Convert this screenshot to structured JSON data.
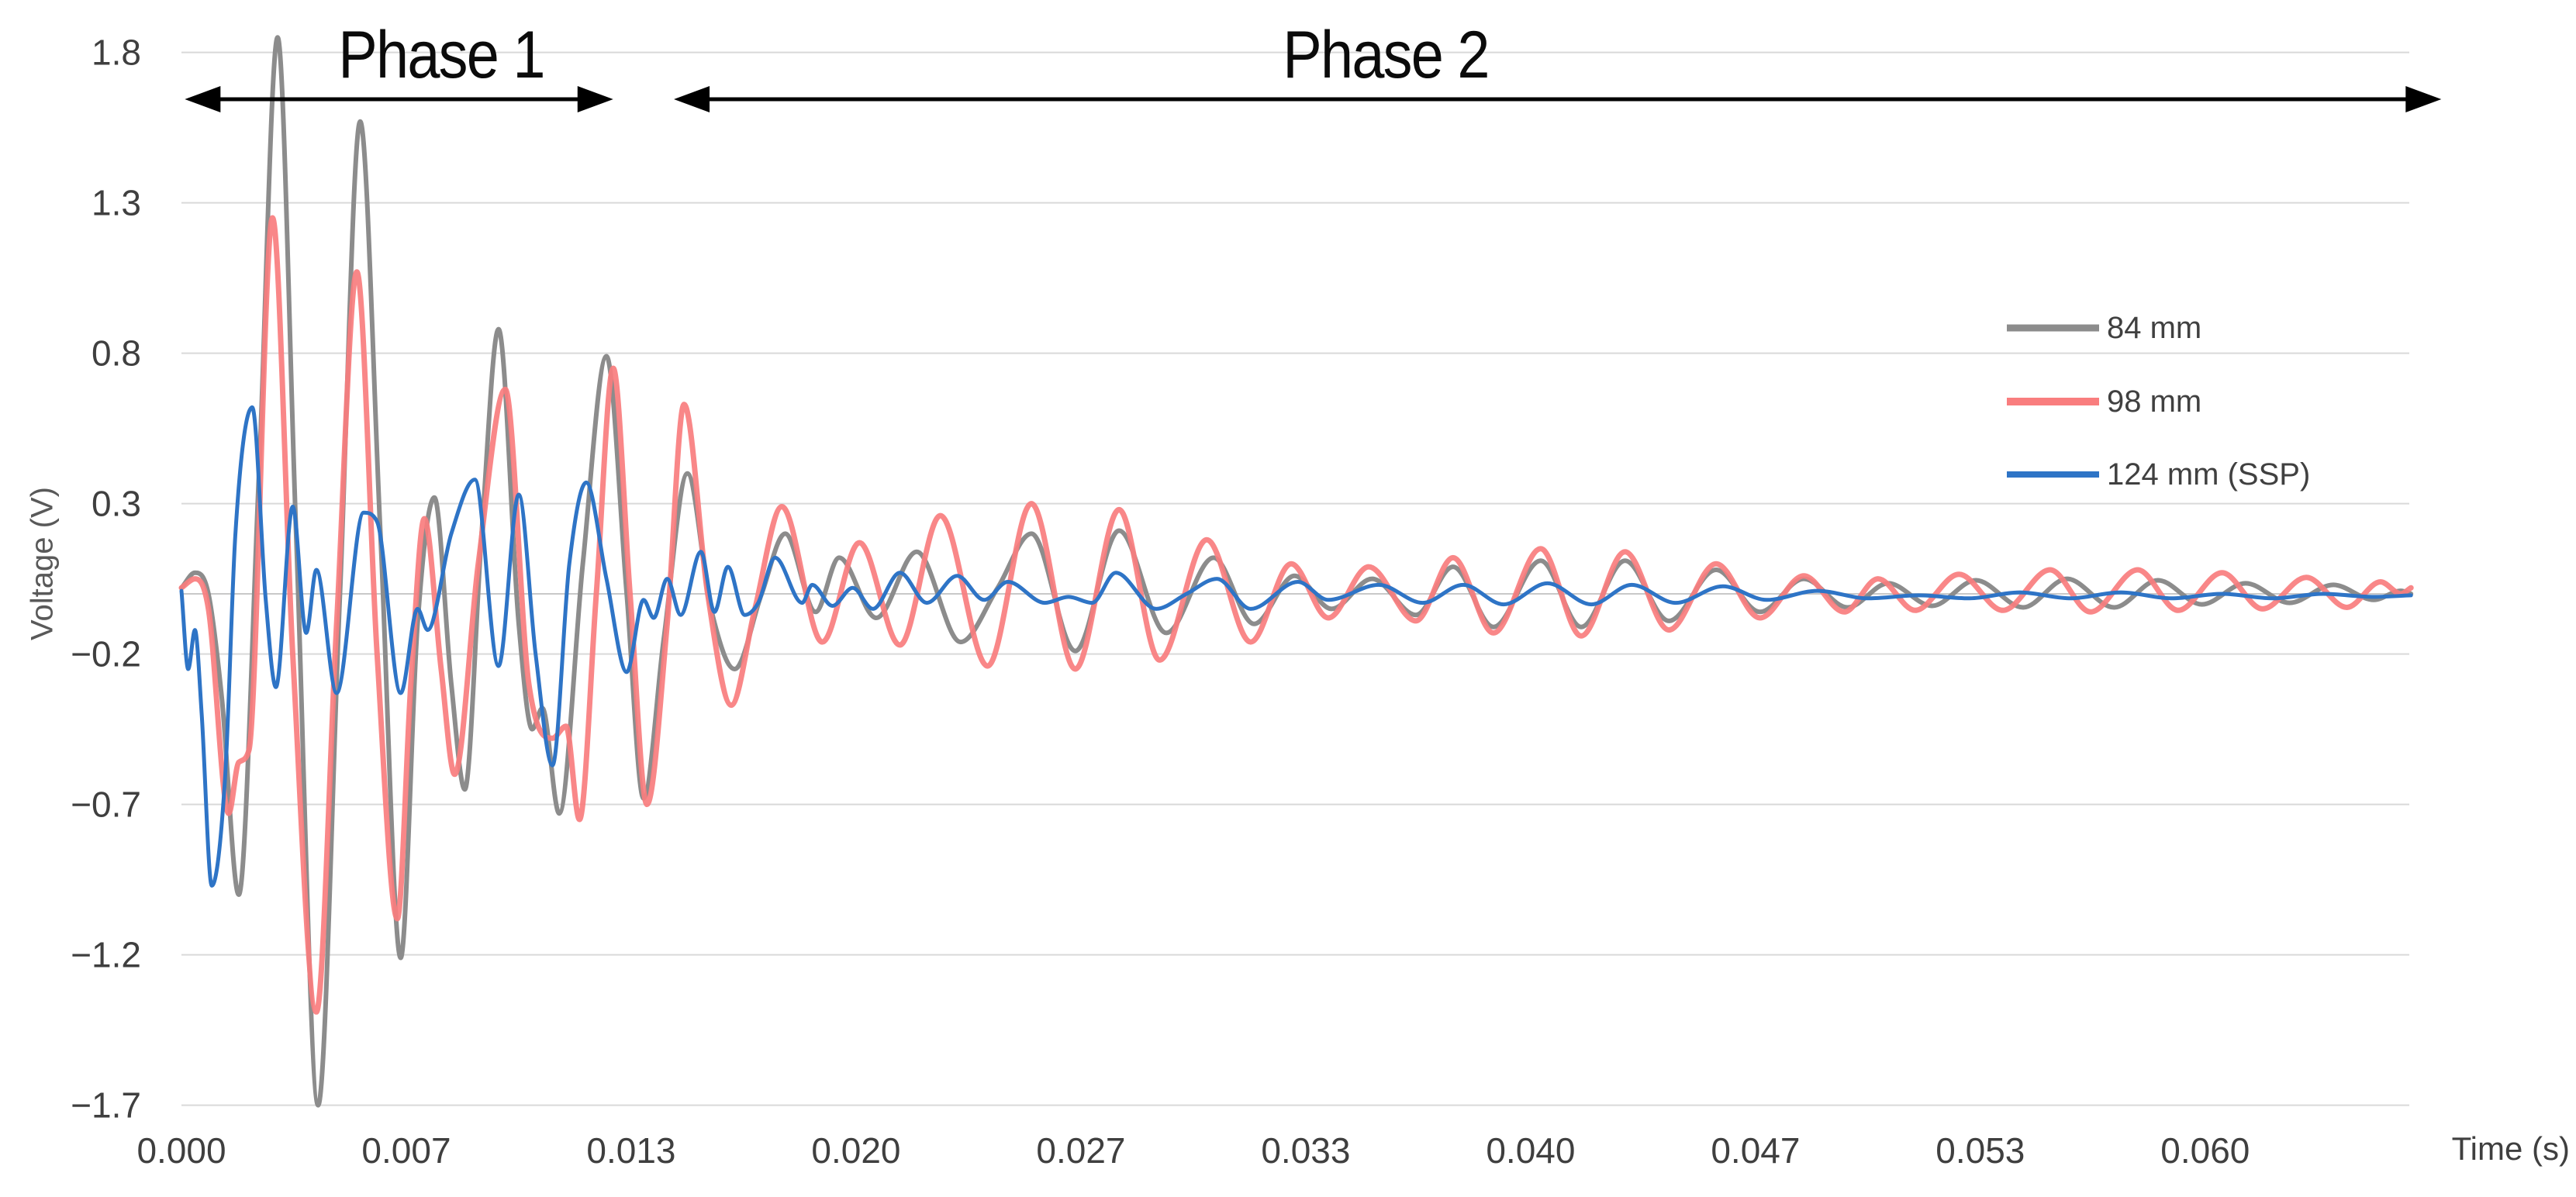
{
  "chart_data": {
    "type": "line",
    "title": "",
    "xlabel": "Time (s)",
    "ylabel": "Voltage (V)",
    "grid": true,
    "grid_color": "#D9D9D9",
    "zero_axis_color": "#C8C8C8",
    "tick_text_color": "#3F3F3F",
    "legend_text_color": "#404040",
    "background_color": "#FFFFFF",
    "legend_position": "right",
    "xlim": [
      0,
      0.06605
    ],
    "ylim": [
      -1.7,
      1.8
    ],
    "x_tick_labels": [
      "0.000",
      "0.007",
      "0.013",
      "0.020",
      "0.027",
      "0.033",
      "0.040",
      "0.047",
      "0.053",
      "0.060"
    ],
    "x_tick_values": [
      0,
      0.006667,
      0.013333,
      0.02,
      0.026667,
      0.033333,
      0.04,
      0.046667,
      0.053333,
      0.06
    ],
    "y_tick_labels": [
      "1.8",
      "1.3",
      "0.8",
      "0.3",
      "−0.2",
      "−0.7",
      "−1.2",
      "−1.7"
    ],
    "y_tick_values": [
      1.8,
      1.3,
      0.8,
      0.3,
      -0.2,
      -0.7,
      -1.2,
      -1.7
    ],
    "annotations": [
      {
        "label": "Phase 1",
        "t_start": 0.0001,
        "t_end": 0.0128,
        "label_t": 0.0077
      },
      {
        "label": "Phase 2",
        "t_start": 0.0146,
        "t_end": 0.067,
        "label_t": 0.0357
      }
    ],
    "series": [
      {
        "name": "84 mm",
        "color": "#8C8C8C",
        "width": 6,
        "points": [
          [
            0,
            0.02
          ],
          [
            0.0004,
            0.07
          ],
          [
            0.0008,
            0.0
          ],
          [
            0.0012,
            -0.35
          ],
          [
            0.0017,
            -1.0
          ],
          [
            0.0023,
            0.4
          ],
          [
            0.00285,
            1.85
          ],
          [
            0.0034,
            0.2
          ],
          [
            0.00405,
            -1.7
          ],
          [
            0.0047,
            0.0
          ],
          [
            0.0053,
            1.57
          ],
          [
            0.0059,
            0.2
          ],
          [
            0.0065,
            -1.21
          ],
          [
            0.007,
            -0.1
          ],
          [
            0.0075,
            0.32
          ],
          [
            0.008,
            -0.3
          ],
          [
            0.0084,
            -0.65
          ],
          [
            0.0089,
            0.2
          ],
          [
            0.0094,
            0.88
          ],
          [
            0.01,
            -0.1
          ],
          [
            0.0104,
            -0.45
          ],
          [
            0.0107,
            -0.38
          ],
          [
            0.0112,
            -0.73
          ],
          [
            0.0119,
            0.1
          ],
          [
            0.0126,
            0.79
          ],
          [
            0.0132,
            0.0
          ],
          [
            0.0137,
            -0.68
          ],
          [
            0.0143,
            -0.15
          ],
          [
            0.015,
            0.4
          ],
          [
            0.0157,
            -0.05
          ],
          [
            0.0164,
            -0.25
          ],
          [
            0.0172,
            0.0
          ],
          [
            0.0179,
            0.2
          ],
          [
            0.0188,
            -0.06
          ],
          [
            0.0195,
            0.12
          ],
          [
            0.0206,
            -0.08
          ],
          [
            0.0218,
            0.14
          ],
          [
            0.0231,
            -0.16
          ],
          [
            0.0242,
            0.02
          ],
          [
            0.0252,
            0.2
          ],
          [
            0.0265,
            -0.19
          ],
          [
            0.0278,
            0.21
          ],
          [
            0.0292,
            -0.13
          ],
          [
            0.0306,
            0.12
          ],
          [
            0.0318,
            -0.1
          ],
          [
            0.033,
            0.06
          ],
          [
            0.0341,
            -0.05
          ],
          [
            0.0353,
            0.05
          ],
          [
            0.0366,
            -0.07
          ],
          [
            0.0377,
            0.09
          ],
          [
            0.0389,
            -0.11
          ],
          [
            0.0403,
            0.11
          ],
          [
            0.0415,
            -0.11
          ],
          [
            0.0428,
            0.11
          ],
          [
            0.0441,
            -0.09
          ],
          [
            0.0455,
            0.08
          ],
          [
            0.0468,
            -0.06
          ],
          [
            0.0481,
            0.05
          ],
          [
            0.0494,
            -0.045
          ],
          [
            0.0506,
            0.035
          ],
          [
            0.0519,
            -0.04
          ],
          [
            0.0532,
            0.045
          ],
          [
            0.0546,
            -0.045
          ],
          [
            0.0559,
            0.05
          ],
          [
            0.0573,
            -0.045
          ],
          [
            0.0586,
            0.045
          ],
          [
            0.0599,
            -0.035
          ],
          [
            0.0612,
            0.035
          ],
          [
            0.0625,
            -0.03
          ],
          [
            0.0638,
            0.03
          ],
          [
            0.065,
            -0.02
          ],
          [
            0.0658,
            0.01
          ],
          [
            0.0661,
            0.0
          ]
        ]
      },
      {
        "name": "98 mm",
        "color": "#F97D7E",
        "width": 7,
        "points": [
          [
            0,
            0.02
          ],
          [
            0.0004,
            0.05
          ],
          [
            0.0008,
            -0.05
          ],
          [
            0.0014,
            -0.73
          ],
          [
            0.0017,
            -0.56
          ],
          [
            0.002,
            -0.52
          ],
          [
            0.0027,
            1.25
          ],
          [
            0.0033,
            -0.2
          ],
          [
            0.004,
            -1.39
          ],
          [
            0.0046,
            -0.1
          ],
          [
            0.0052,
            1.07
          ],
          [
            0.0058,
            -0.2
          ],
          [
            0.0064,
            -1.08
          ],
          [
            0.0068,
            -0.3
          ],
          [
            0.0072,
            0.25
          ],
          [
            0.0077,
            -0.25
          ],
          [
            0.0081,
            -0.6
          ],
          [
            0.0088,
            0.1
          ],
          [
            0.0096,
            0.68
          ],
          [
            0.0103,
            -0.3
          ],
          [
            0.011,
            -0.48
          ],
          [
            0.0114,
            -0.44
          ],
          [
            0.0118,
            -0.75
          ],
          [
            0.0123,
            0.0
          ],
          [
            0.0128,
            0.75
          ],
          [
            0.0133,
            0.0
          ],
          [
            0.0138,
            -0.7
          ],
          [
            0.0144,
            -0.1
          ],
          [
            0.0149,
            0.63
          ],
          [
            0.0156,
            0.0
          ],
          [
            0.0163,
            -0.37
          ],
          [
            0.017,
            -0.05
          ],
          [
            0.0178,
            0.29
          ],
          [
            0.019,
            -0.16
          ],
          [
            0.0201,
            0.17
          ],
          [
            0.0213,
            -0.17
          ],
          [
            0.0225,
            0.26
          ],
          [
            0.0239,
            -0.24
          ],
          [
            0.0252,
            0.3
          ],
          [
            0.0265,
            -0.25
          ],
          [
            0.0278,
            0.28
          ],
          [
            0.029,
            -0.22
          ],
          [
            0.0304,
            0.18
          ],
          [
            0.0317,
            -0.16
          ],
          [
            0.0329,
            0.1
          ],
          [
            0.034,
            -0.08
          ],
          [
            0.0352,
            0.09
          ],
          [
            0.0366,
            -0.09
          ],
          [
            0.0377,
            0.12
          ],
          [
            0.0389,
            -0.13
          ],
          [
            0.0403,
            0.15
          ],
          [
            0.0415,
            -0.14
          ],
          [
            0.0428,
            0.14
          ],
          [
            0.0441,
            -0.12
          ],
          [
            0.0455,
            0.1
          ],
          [
            0.0468,
            -0.08
          ],
          [
            0.0481,
            0.06
          ],
          [
            0.0493,
            -0.06
          ],
          [
            0.0503,
            0.05
          ],
          [
            0.0514,
            -0.055
          ],
          [
            0.0527,
            0.065
          ],
          [
            0.054,
            -0.055
          ],
          [
            0.0554,
            0.08
          ],
          [
            0.0566,
            -0.06
          ],
          [
            0.058,
            0.08
          ],
          [
            0.0592,
            -0.055
          ],
          [
            0.0605,
            0.07
          ],
          [
            0.0617,
            -0.05
          ],
          [
            0.063,
            0.055
          ],
          [
            0.0642,
            -0.045
          ],
          [
            0.0652,
            0.04
          ],
          [
            0.0658,
            0.0
          ],
          [
            0.0661,
            0.02
          ]
        ]
      },
      {
        "name": "124 mm (SSP)",
        "color": "#2E74C6",
        "width": 5,
        "points": [
          [
            0,
            0.01
          ],
          [
            0.0002,
            -0.25
          ],
          [
            0.0004,
            -0.12
          ],
          [
            0.0006,
            -0.4
          ],
          [
            0.0009,
            -0.97
          ],
          [
            0.0013,
            -0.6
          ],
          [
            0.0016,
            0.2
          ],
          [
            0.0021,
            0.62
          ],
          [
            0.0025,
            -0.02
          ],
          [
            0.0028,
            -0.31
          ],
          [
            0.0033,
            0.29
          ],
          [
            0.0037,
            -0.13
          ],
          [
            0.004,
            0.08
          ],
          [
            0.0046,
            -0.33
          ],
          [
            0.0054,
            0.27
          ],
          [
            0.0058,
            0.24
          ],
          [
            0.0065,
            -0.33
          ],
          [
            0.007,
            -0.05
          ],
          [
            0.0073,
            -0.12
          ],
          [
            0.008,
            0.2
          ],
          [
            0.0087,
            0.38
          ],
          [
            0.0094,
            -0.24
          ],
          [
            0.01,
            0.33
          ],
          [
            0.0105,
            -0.2
          ],
          [
            0.011,
            -0.57
          ],
          [
            0.0115,
            0.1
          ],
          [
            0.012,
            0.37
          ],
          [
            0.0126,
            0.05
          ],
          [
            0.0132,
            -0.26
          ],
          [
            0.0137,
            -0.02
          ],
          [
            0.014,
            -0.08
          ],
          [
            0.0144,
            0.05
          ],
          [
            0.0148,
            -0.07
          ],
          [
            0.0154,
            0.14
          ],
          [
            0.0158,
            -0.06
          ],
          [
            0.0162,
            0.09
          ],
          [
            0.0167,
            -0.07
          ],
          [
            0.0171,
            -0.03
          ],
          [
            0.0176,
            0.12
          ],
          [
            0.0184,
            -0.03
          ],
          [
            0.0187,
            0.03
          ],
          [
            0.0193,
            -0.04
          ],
          [
            0.0199,
            0.02
          ],
          [
            0.0205,
            -0.05
          ],
          [
            0.0213,
            0.07
          ],
          [
            0.0221,
            -0.03
          ],
          [
            0.023,
            0.06
          ],
          [
            0.0238,
            -0.02
          ],
          [
            0.0245,
            0.04
          ],
          [
            0.0256,
            -0.03
          ],
          [
            0.0263,
            -0.01
          ],
          [
            0.027,
            -0.03
          ],
          [
            0.0277,
            0.07
          ],
          [
            0.0289,
            -0.05
          ],
          [
            0.0298,
            0.0
          ],
          [
            0.0307,
            0.05
          ],
          [
            0.0317,
            -0.05
          ],
          [
            0.0331,
            0.04
          ],
          [
            0.034,
            -0.02
          ],
          [
            0.0355,
            0.03
          ],
          [
            0.0368,
            -0.03
          ],
          [
            0.038,
            0.03
          ],
          [
            0.0392,
            -0.035
          ],
          [
            0.0405,
            0.035
          ],
          [
            0.0418,
            -0.035
          ],
          [
            0.043,
            0.03
          ],
          [
            0.0443,
            -0.03
          ],
          [
            0.0457,
            0.025
          ],
          [
            0.047,
            -0.02
          ],
          [
            0.0485,
            0.01
          ],
          [
            0.05,
            -0.015
          ],
          [
            0.0515,
            -0.005
          ],
          [
            0.053,
            -0.015
          ],
          [
            0.0545,
            0.005
          ],
          [
            0.056,
            -0.015
          ],
          [
            0.0575,
            0.005
          ],
          [
            0.059,
            -0.015
          ],
          [
            0.0605,
            0.0
          ],
          [
            0.062,
            -0.015
          ],
          [
            0.0635,
            0.0
          ],
          [
            0.065,
            -0.01
          ],
          [
            0.0661,
            -0.005
          ]
        ]
      }
    ]
  }
}
